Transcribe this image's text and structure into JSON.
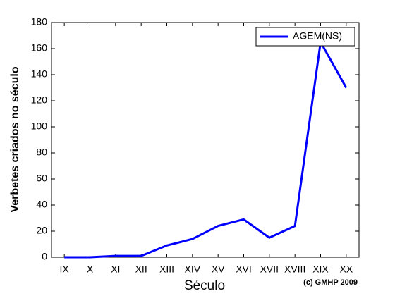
{
  "chart_data": {
    "type": "line",
    "x_label": "Século",
    "y_label": "Verbetes criados no século",
    "annotation": "(c) GMHP 2009",
    "categories": [
      "IX",
      "X",
      "XI",
      "XII",
      "XIII",
      "XIV",
      "XV",
      "XVI",
      "XVII",
      "XVIII",
      "XIX",
      "XX"
    ],
    "series": [
      {
        "name": "AGEM(NS)",
        "color": "#0000ff",
        "values": [
          0,
          0,
          1,
          1,
          9,
          14,
          24,
          29,
          15,
          24,
          165,
          130
        ]
      }
    ],
    "ylim": [
      0,
      180
    ],
    "yticks": [
      0,
      20,
      40,
      60,
      80,
      100,
      120,
      140,
      160,
      180
    ],
    "legend": "upper right"
  }
}
